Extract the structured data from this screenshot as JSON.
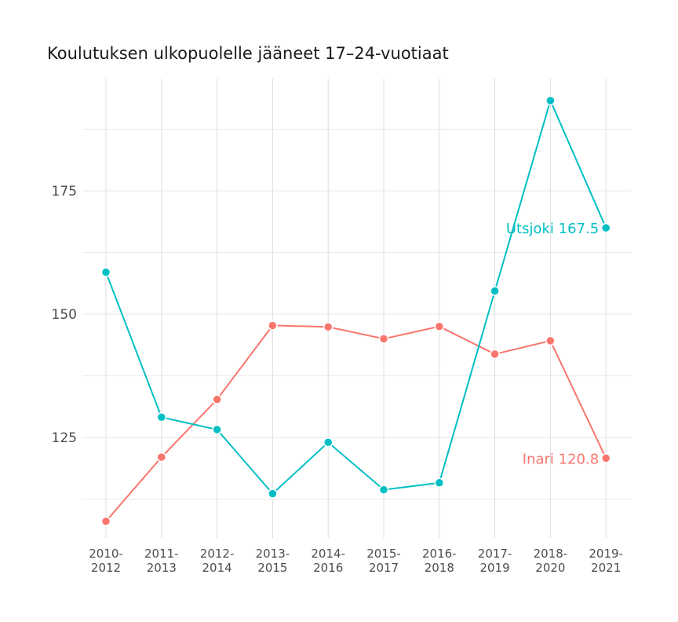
{
  "chart_data": {
    "type": "line",
    "title": "Koulutuksen ulkopuolelle jääneet 17–24-vuotiaat",
    "xlabel": "",
    "ylabel": "",
    "categories": [
      [
        "2010-",
        "2012"
      ],
      [
        "2011-",
        "2013"
      ],
      [
        "2012-",
        "2014"
      ],
      [
        "2013-",
        "2015"
      ],
      [
        "2014-",
        "2016"
      ],
      [
        "2015-",
        "2017"
      ],
      [
        "2016-",
        "2018"
      ],
      [
        "2017-",
        "2019"
      ],
      [
        "2018-",
        "2020"
      ],
      [
        "2019-",
        "2021"
      ]
    ],
    "yticks": [
      125,
      150,
      175
    ],
    "ylim": [
      107,
      200
    ],
    "grid": true,
    "legend": "none",
    "series": [
      {
        "name": "Inari",
        "color": "#F8766D",
        "values": [
          108.0,
          121.0,
          132.7,
          147.7,
          147.4,
          145.0,
          147.5,
          141.9,
          144.6,
          120.8
        ],
        "end_label": "Inari 120.8"
      },
      {
        "name": "Utsjoki",
        "color": "#00BFC4",
        "values": [
          158.5,
          129.1,
          126.6,
          113.6,
          124.0,
          114.4,
          115.8,
          154.7,
          193.3,
          167.5
        ],
        "end_label": "Utsjoki 167.5"
      }
    ]
  }
}
